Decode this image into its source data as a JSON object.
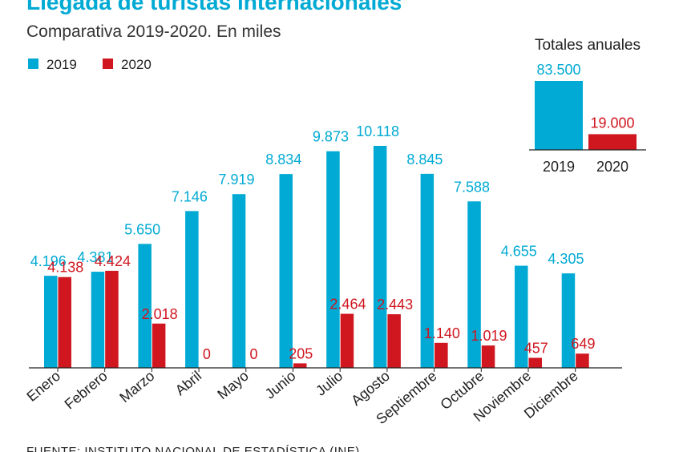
{
  "header": {
    "title": "Llegada de turistas internacionales",
    "subtitle": "Comparativa 2019-2020. En miles"
  },
  "source": "FUENTE: INSTITUTO NACIONAL DE ESTADÍSTICA (INE)",
  "colors": {
    "series_2019": "#00aad4",
    "series_2020": "#d0161f",
    "title": "#00aad4"
  },
  "chart_data": [
    {
      "type": "bar",
      "categories": [
        "Enero",
        "Febrero",
        "Marzo",
        "Abril",
        "Mayo",
        "Junio",
        "Julio",
        "Agosto",
        "Septiembre",
        "Octubre",
        "Noviembre",
        "Diciembre"
      ],
      "series": [
        {
          "name": "2019",
          "values": [
            4196,
            4381,
            5650,
            7146,
            7919,
            8834,
            9873,
            10118,
            8845,
            7588,
            4655,
            4305
          ],
          "labels": [
            "4.196",
            "4.381",
            "5.650",
            "7.146",
            "7.919",
            "8.834",
            "9.873",
            "10.118",
            "8.845",
            "7.588",
            "4.655",
            "4.305"
          ]
        },
        {
          "name": "2020",
          "values": [
            4138,
            4424,
            2018,
            0,
            0,
            205,
            2464,
            2443,
            1140,
            1019,
            457,
            649
          ],
          "labels": [
            "4.138",
            "4.424",
            "2.018",
            "0",
            "0",
            "205",
            "2.464",
            "2.443",
            "1.140",
            "1.019",
            "457",
            "649"
          ]
        }
      ],
      "title": "",
      "xlabel": "",
      "ylabel": "",
      "ylim": [
        0,
        10118
      ],
      "grid": false,
      "legend": "top-left"
    },
    {
      "type": "bar",
      "title": "Totales anuales",
      "categories": [
        "2019",
        "2020"
      ],
      "values": [
        83500,
        19000
      ],
      "labels": [
        "83.500",
        "19.000"
      ],
      "ylim": [
        0,
        83500
      ]
    }
  ]
}
